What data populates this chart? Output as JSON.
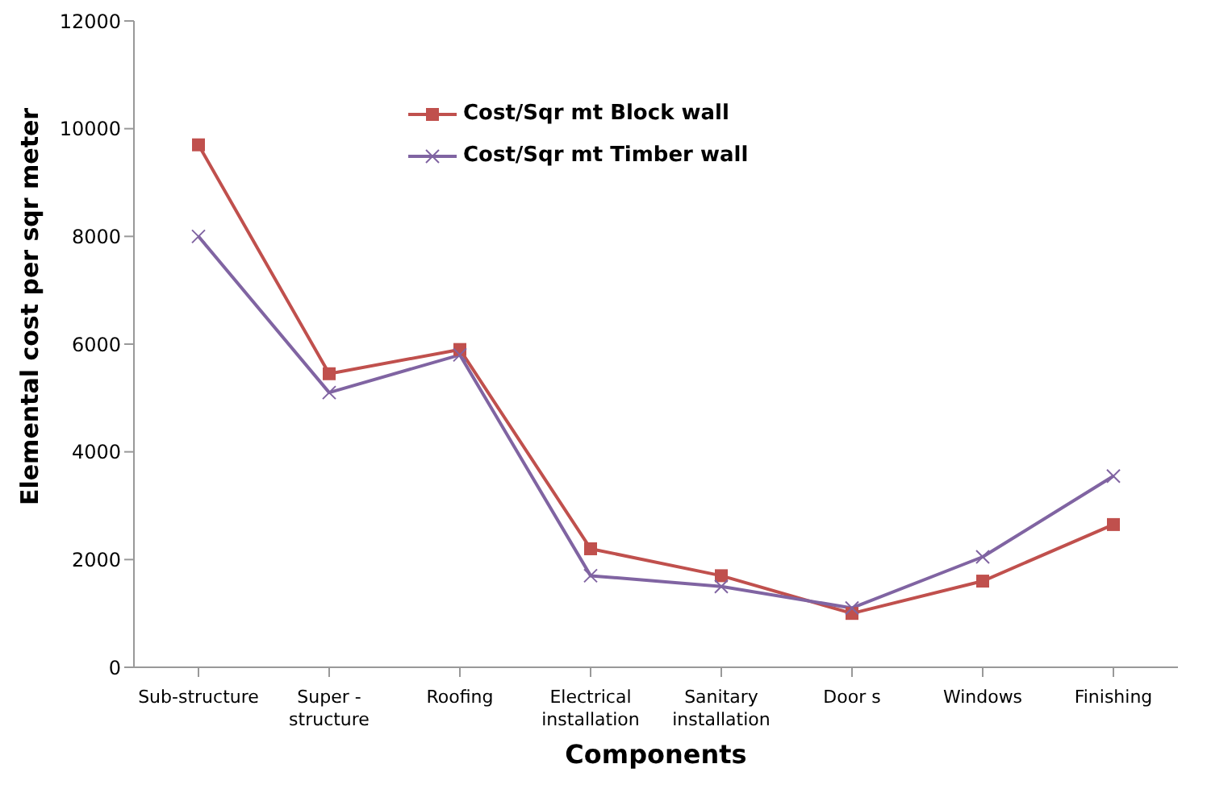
{
  "chart_data": {
    "type": "line",
    "xlabel": "Components",
    "ylabel": "Elemental cost per sqr meter",
    "categories": [
      "Sub-structure",
      "Super - structure",
      "Roofing",
      "Electrical installation",
      "Sanitary installation",
      "Door s",
      "Windows",
      "Finishing"
    ],
    "series": [
      {
        "name": "Cost/Sqr mt Block wall",
        "color": "#c0504d",
        "marker": "square",
        "values": [
          9700,
          5450,
          5900,
          2200,
          1700,
          1000,
          1600,
          2650
        ]
      },
      {
        "name": "Cost/Sqr mt Timber wall",
        "color": "#8064a2",
        "marker": "cross",
        "values": [
          8000,
          5100,
          5800,
          1700,
          1500,
          1100,
          2050,
          3550
        ]
      }
    ],
    "ylim": [
      0,
      12000
    ],
    "yticks": [
      0,
      2000,
      4000,
      6000,
      8000,
      10000,
      12000
    ],
    "grid": false,
    "legend": "top",
    "line_style": "solid"
  }
}
